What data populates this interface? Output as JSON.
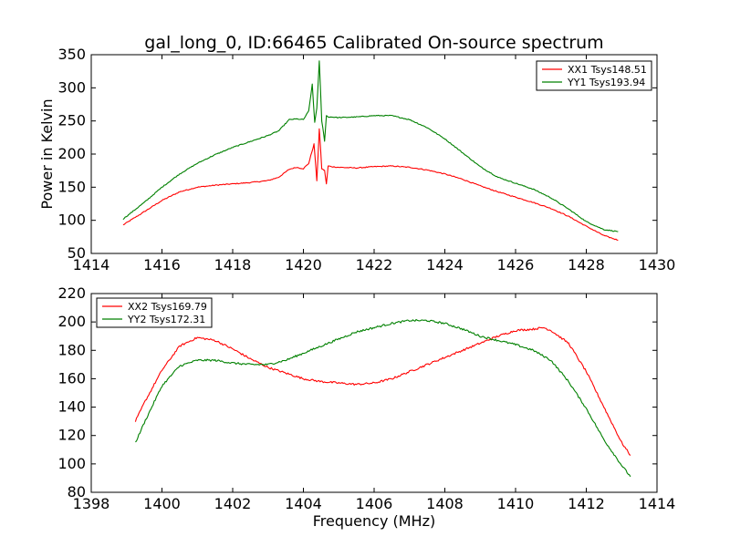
{
  "title": "gal_long_0, ID:66465 Calibrated On-source spectrum",
  "chart_data": [
    {
      "type": "line",
      "title": "gal_long_0, ID:66465 Calibrated On-source spectrum",
      "xlabel": "",
      "ylabel": "Power in Kelvin",
      "xlim": [
        1414,
        1430
      ],
      "ylim": [
        50,
        350
      ],
      "xticks": [
        "1414",
        "1416",
        "1418",
        "1420",
        "1422",
        "1424",
        "1426",
        "1428",
        "1430"
      ],
      "yticks": [
        "50",
        "100",
        "150",
        "200",
        "250",
        "300",
        "350"
      ],
      "legend_position": "top-right",
      "series": [
        {
          "name": "XX1 Tsys148.51",
          "color": "#ff0000",
          "x": [
            1414.9,
            1415.5,
            1416.0,
            1416.5,
            1417.0,
            1417.5,
            1418.0,
            1418.5,
            1419.0,
            1419.3,
            1419.6,
            1419.8,
            1420.0,
            1420.15,
            1420.3,
            1420.38,
            1420.45,
            1420.52,
            1420.6,
            1420.65,
            1420.7,
            1420.8,
            1421.0,
            1421.5,
            1422.0,
            1422.5,
            1423.0,
            1423.5,
            1424.0,
            1424.5,
            1425.0,
            1425.5,
            1426.0,
            1426.5,
            1427.0,
            1427.5,
            1428.0,
            1428.5,
            1428.9
          ],
          "values": [
            93,
            113,
            130,
            143,
            150,
            153,
            155,
            157,
            160,
            165,
            177,
            180,
            178,
            186,
            215,
            160,
            238,
            178,
            175,
            155,
            182,
            181,
            180,
            179,
            181,
            182,
            180,
            176,
            170,
            162,
            152,
            143,
            135,
            127,
            118,
            106,
            91,
            77,
            70
          ]
        },
        {
          "name": "YY1 Tsys193.94",
          "color": "#008000",
          "x": [
            1414.9,
            1415.5,
            1416.0,
            1416.5,
            1417.0,
            1417.5,
            1418.0,
            1418.5,
            1419.0,
            1419.3,
            1419.6,
            1419.8,
            1420.0,
            1420.15,
            1420.25,
            1420.32,
            1420.38,
            1420.45,
            1420.52,
            1420.6,
            1420.65,
            1420.7,
            1420.8,
            1421.0,
            1421.5,
            1422.0,
            1422.5,
            1423.0,
            1423.5,
            1424.0,
            1424.5,
            1425.0,
            1425.5,
            1426.0,
            1426.5,
            1427.0,
            1427.5,
            1428.0,
            1428.5,
            1428.9
          ],
          "values": [
            102,
            127,
            150,
            170,
            186,
            199,
            210,
            219,
            228,
            235,
            252,
            253,
            252,
            265,
            305,
            248,
            270,
            340,
            250,
            220,
            258,
            256,
            256,
            255,
            256,
            258,
            258,
            252,
            240,
            223,
            202,
            181,
            165,
            156,
            147,
            134,
            117,
            98,
            86,
            83
          ]
        }
      ]
    },
    {
      "type": "line",
      "title": "",
      "xlabel": "Frequency (MHz)",
      "ylabel": "",
      "xlim": [
        1398,
        1414
      ],
      "ylim": [
        80,
        220
      ],
      "xticks": [
        "1398",
        "1400",
        "1402",
        "1404",
        "1406",
        "1408",
        "1410",
        "1412",
        "1414"
      ],
      "yticks": [
        "80",
        "100",
        "120",
        "140",
        "160",
        "180",
        "200",
        "220"
      ],
      "legend_position": "top-left",
      "series": [
        {
          "name": "XX2 Tsys169.79",
          "color": "#ff0000",
          "x": [
            1399.25,
            1399.5,
            1400.0,
            1400.5,
            1401.0,
            1401.5,
            1402.0,
            1402.5,
            1403.0,
            1403.5,
            1404.0,
            1404.5,
            1405.0,
            1405.5,
            1406.0,
            1406.5,
            1407.0,
            1407.5,
            1408.0,
            1408.5,
            1409.0,
            1409.5,
            1410.0,
            1410.5,
            1410.8,
            1411.0,
            1411.5,
            1412.0,
            1412.5,
            1413.0,
            1413.25
          ],
          "values": [
            130,
            143,
            166,
            183,
            189,
            187,
            181,
            174,
            168,
            164,
            160,
            158,
            157,
            156,
            157,
            160,
            165,
            170,
            175,
            180,
            185,
            190,
            194,
            195,
            196,
            194,
            185,
            165,
            140,
            115,
            106
          ]
        },
        {
          "name": "YY2 Tsys172.31",
          "color": "#008000",
          "x": [
            1399.25,
            1399.5,
            1400.0,
            1400.5,
            1401.0,
            1401.5,
            1402.0,
            1402.5,
            1403.0,
            1403.5,
            1404.0,
            1404.5,
            1405.0,
            1405.5,
            1406.0,
            1406.5,
            1407.0,
            1407.5,
            1408.0,
            1408.5,
            1409.0,
            1409.5,
            1410.0,
            1410.5,
            1411.0,
            1411.5,
            1412.0,
            1412.5,
            1413.0,
            1413.25
          ],
          "values": [
            115,
            129,
            155,
            169,
            173,
            173,
            171,
            170,
            170,
            173,
            178,
            183,
            188,
            193,
            196,
            199,
            201,
            201,
            199,
            195,
            190,
            187,
            184,
            180,
            173,
            158,
            139,
            117,
            99,
            91
          ]
        }
      ]
    }
  ]
}
